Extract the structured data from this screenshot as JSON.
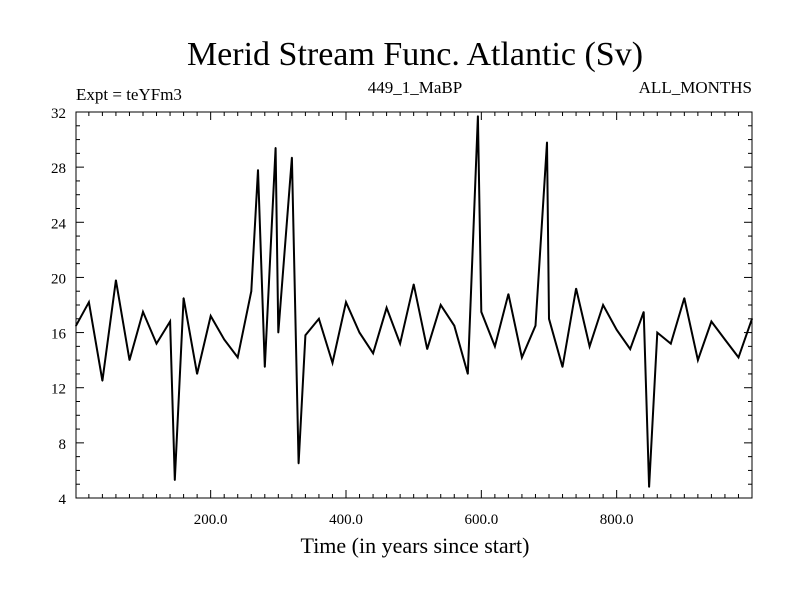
{
  "chart_data": {
    "type": "line",
    "title": "Merid Stream Func. Atlantic (Sv)",
    "header_left": "Expt = teYFm3",
    "header_center": "449_1_MaBP",
    "header_right": "ALL_MONTHS",
    "xlabel": "Time (in years since start)",
    "ylabel": "",
    "xlim": [
      1,
      1000
    ],
    "ylim": [
      4,
      32
    ],
    "x_ticks": [
      200.0,
      400.0,
      600.0,
      800.0
    ],
    "x_tick_labels": [
      "200.0",
      "400.0",
      "600.0",
      "800.0"
    ],
    "y_ticks": [
      4,
      8,
      12,
      16,
      20,
      24,
      28,
      32
    ],
    "y_tick_labels": [
      "4",
      "8",
      "12",
      "16",
      "20",
      "24",
      "28",
      "32"
    ],
    "grid": false,
    "line_color": "#000000",
    "series": [
      {
        "x": [
          1,
          20,
          40,
          60,
          80,
          100,
          120,
          140,
          147,
          160,
          180,
          200,
          220,
          240,
          260,
          270,
          280,
          296,
          300,
          320,
          330,
          340,
          360,
          380,
          400,
          420,
          440,
          460,
          480,
          500,
          520,
          540,
          560,
          580,
          595,
          600,
          620,
          640,
          660,
          680,
          697,
          700,
          720,
          740,
          760,
          780,
          800,
          820,
          840,
          848,
          860,
          880,
          900,
          920,
          940,
          960,
          980,
          1000
        ],
        "values": [
          16.5,
          18.2,
          12.5,
          19.8,
          14.0,
          17.5,
          15.2,
          16.8,
          5.3,
          18.5,
          13.0,
          17.2,
          15.5,
          14.2,
          19.0,
          27.8,
          13.5,
          29.4,
          16.0,
          28.7,
          6.5,
          15.8,
          17.0,
          13.8,
          18.2,
          16.0,
          14.5,
          17.8,
          15.2,
          19.5,
          14.8,
          18.0,
          16.5,
          13.0,
          31.7,
          17.5,
          15.0,
          18.8,
          14.2,
          16.5,
          29.8,
          17.0,
          13.5,
          19.2,
          15.0,
          18.0,
          16.2,
          14.8,
          17.5,
          4.8,
          16.0,
          15.2,
          18.5,
          14.0,
          16.8,
          15.5,
          14.2,
          17.0
        ]
      }
    ]
  }
}
